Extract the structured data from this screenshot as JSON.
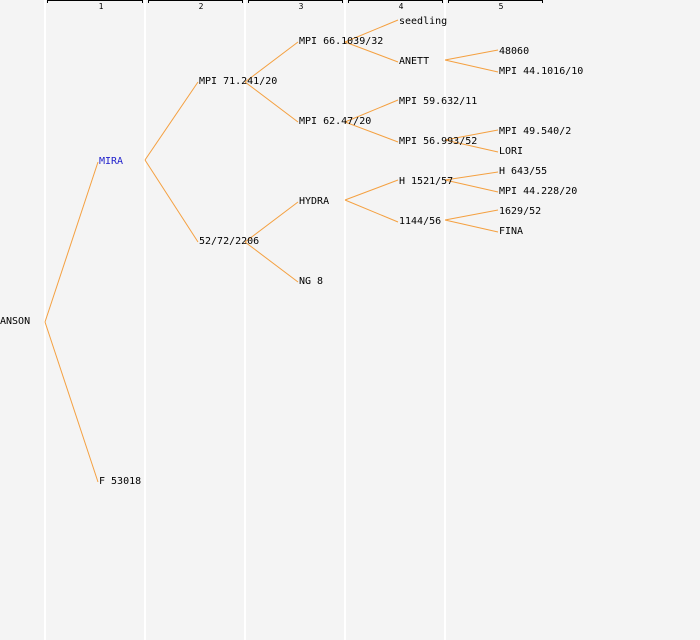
{
  "generations": [
    "1",
    "2",
    "3",
    "4",
    "5"
  ],
  "nodes": {
    "root": "ANSON",
    "sire": "MIRA",
    "dam": "F 53018",
    "ss": "MPI 71.241/20",
    "sd": "52/72/2206",
    "sss": "MPI 66.1039/32",
    "ssd": "MPI 62.47/20",
    "sds": "HYDRA",
    "sdd": "NG 8",
    "ssss": "seedling",
    "sssd": "ANETT",
    "ssds": "MPI 59.632/11",
    "ssdd": "MPI 56.993/52",
    "sdss": "H 1521/57",
    "sdsd": "1144/56",
    "sssds": "48060",
    "sssdd": "MPI 44.1016/10",
    "ssdds": "MPI 49.540/2",
    "ssddd": "LORI",
    "sdsss": "H 643/55",
    "sdssd": "MPI 44.228/20",
    "sdsds": "1629/52",
    "sdsdd": "FINA"
  },
  "colors": {
    "background": "#f4f4f4",
    "edge": "#f4a040",
    "highlight_text": "#2222cc",
    "column_separator": "#ffffff"
  }
}
